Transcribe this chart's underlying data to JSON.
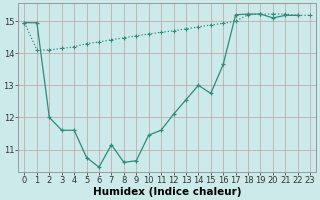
{
  "line1_x": [
    0,
    1,
    2,
    3,
    4,
    5,
    6,
    7,
    8,
    9,
    10,
    11,
    12,
    13,
    14,
    15,
    16,
    17,
    18,
    19,
    20,
    21,
    22,
    23
  ],
  "line1_y": [
    14.95,
    14.1,
    14.1,
    14.15,
    14.2,
    14.3,
    14.35,
    14.42,
    14.48,
    14.54,
    14.6,
    14.65,
    14.7,
    14.76,
    14.82,
    14.88,
    14.93,
    15.0,
    15.2,
    15.22,
    15.22,
    15.22,
    15.18,
    15.18
  ],
  "line2_x": [
    0,
    1,
    2,
    3,
    4,
    5,
    6,
    7,
    8,
    9,
    10,
    11,
    12,
    13,
    14,
    15,
    16,
    17,
    18,
    19,
    20,
    21,
    22,
    23
  ],
  "line2_y": [
    14.95,
    14.95,
    12.0,
    11.6,
    11.6,
    10.75,
    10.45,
    11.15,
    10.6,
    10.65,
    11.45,
    11.6,
    12.1,
    12.55,
    13.0,
    12.75,
    13.65,
    15.2,
    15.22,
    15.22,
    15.1,
    15.18,
    15.18,
    null
  ],
  "color": "#2e8b7a",
  "bg_color": "#cdeaea",
  "grid_color": "#b8d8d8",
  "xlabel": "Humidex (Indice chaleur)",
  "ylim": [
    10.3,
    15.55
  ],
  "xlim": [
    -0.5,
    23.5
  ],
  "yticks": [
    11,
    12,
    13,
    14,
    15
  ],
  "xticks": [
    0,
    1,
    2,
    3,
    4,
    5,
    6,
    7,
    8,
    9,
    10,
    11,
    12,
    13,
    14,
    15,
    16,
    17,
    18,
    19,
    20,
    21,
    22,
    23
  ],
  "xtick_labels": [
    "0",
    "1",
    "2",
    "3",
    "4",
    "5",
    "6",
    "7",
    "8",
    "9",
    "10",
    "11",
    "12",
    "13",
    "14",
    "15",
    "16",
    "17",
    "18",
    "19",
    "20",
    "21",
    "22",
    "23"
  ],
  "xlabel_fontsize": 7.5,
  "tick_fontsize": 6.0
}
